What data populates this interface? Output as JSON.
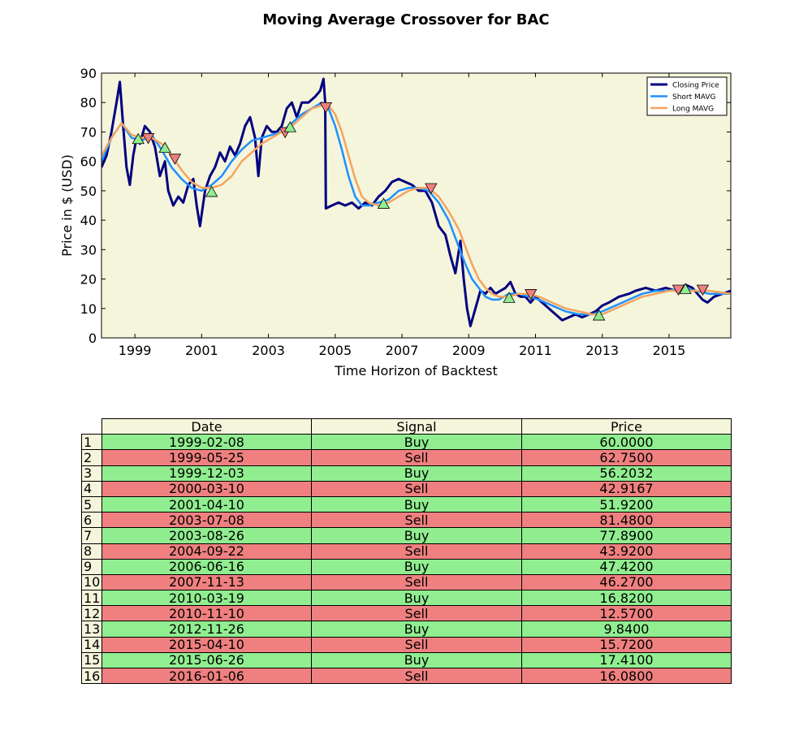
{
  "title": "Moving Average Crossover for BAC",
  "chart_data": {
    "type": "line",
    "xlabel": "Time Horizon of Backtest",
    "ylabel": "Price in $ (USD)",
    "xlim": [
      1998.0,
      2016.85
    ],
    "ylim": [
      0,
      90
    ],
    "xticks": [
      1999,
      2001,
      2003,
      2005,
      2007,
      2009,
      2011,
      2013,
      2015
    ],
    "yticks": [
      0,
      10,
      20,
      30,
      40,
      50,
      60,
      70,
      80,
      90
    ],
    "grid": false,
    "legend_position": "top-right",
    "colors": {
      "background": "#f5f5dc",
      "closing": "#000080",
      "short": "#1e90ff",
      "long": "#f4a460",
      "buy": "#90ee90",
      "sell": "#f08080"
    },
    "series": [
      {
        "name": "Closing Price",
        "points": [
          [
            1998.0,
            58
          ],
          [
            1998.15,
            62
          ],
          [
            1998.3,
            70
          ],
          [
            1998.45,
            80
          ],
          [
            1998.55,
            87
          ],
          [
            1998.65,
            72
          ],
          [
            1998.75,
            58
          ],
          [
            1998.85,
            52
          ],
          [
            1998.95,
            62
          ],
          [
            1999.05,
            68
          ],
          [
            1999.15,
            66
          ],
          [
            1999.3,
            72
          ],
          [
            1999.45,
            70
          ],
          [
            1999.6,
            65
          ],
          [
            1999.75,
            55
          ],
          [
            1999.9,
            60
          ],
          [
            2000.0,
            50
          ],
          [
            2000.15,
            45
          ],
          [
            2000.3,
            48
          ],
          [
            2000.45,
            46
          ],
          [
            2000.6,
            52
          ],
          [
            2000.75,
            54
          ],
          [
            2000.85,
            45
          ],
          [
            2000.95,
            38
          ],
          [
            2001.1,
            50
          ],
          [
            2001.25,
            55
          ],
          [
            2001.4,
            58
          ],
          [
            2001.55,
            63
          ],
          [
            2001.7,
            60
          ],
          [
            2001.85,
            65
          ],
          [
            2002.0,
            62
          ],
          [
            2002.15,
            66
          ],
          [
            2002.3,
            72
          ],
          [
            2002.45,
            75
          ],
          [
            2002.6,
            68
          ],
          [
            2002.7,
            55
          ],
          [
            2002.8,
            68
          ],
          [
            2002.95,
            72
          ],
          [
            2003.1,
            70
          ],
          [
            2003.25,
            70
          ],
          [
            2003.4,
            72
          ],
          [
            2003.55,
            78
          ],
          [
            2003.7,
            80
          ],
          [
            2003.85,
            75
          ],
          [
            2004.0,
            80
          ],
          [
            2004.2,
            80
          ],
          [
            2004.4,
            82
          ],
          [
            2004.55,
            84
          ],
          [
            2004.65,
            88
          ],
          [
            2004.7,
            80
          ],
          [
            2004.72,
            44
          ],
          [
            2004.9,
            45
          ],
          [
            2005.1,
            46
          ],
          [
            2005.3,
            45
          ],
          [
            2005.5,
            46
          ],
          [
            2005.7,
            44
          ],
          [
            2005.9,
            46
          ],
          [
            2006.1,
            45
          ],
          [
            2006.3,
            48
          ],
          [
            2006.5,
            50
          ],
          [
            2006.7,
            53
          ],
          [
            2006.9,
            54
          ],
          [
            2007.1,
            53
          ],
          [
            2007.3,
            52
          ],
          [
            2007.5,
            50
          ],
          [
            2007.7,
            50
          ],
          [
            2007.9,
            46
          ],
          [
            2008.1,
            38
          ],
          [
            2008.3,
            35
          ],
          [
            2008.45,
            28
          ],
          [
            2008.6,
            22
          ],
          [
            2008.75,
            33
          ],
          [
            2008.85,
            20
          ],
          [
            2008.95,
            10
          ],
          [
            2009.05,
            4
          ],
          [
            2009.2,
            10
          ],
          [
            2009.35,
            16
          ],
          [
            2009.5,
            15
          ],
          [
            2009.65,
            17
          ],
          [
            2009.8,
            15
          ],
          [
            2009.95,
            16
          ],
          [
            2010.1,
            17
          ],
          [
            2010.25,
            19
          ],
          [
            2010.4,
            15
          ],
          [
            2010.55,
            14
          ],
          [
            2010.7,
            14
          ],
          [
            2010.85,
            12
          ],
          [
            2011.0,
            14
          ],
          [
            2011.2,
            12
          ],
          [
            2011.4,
            10
          ],
          [
            2011.6,
            8
          ],
          [
            2011.8,
            6
          ],
          [
            2012.0,
            7
          ],
          [
            2012.2,
            8
          ],
          [
            2012.4,
            7
          ],
          [
            2012.6,
            8
          ],
          [
            2012.8,
            9
          ],
          [
            2013.0,
            11
          ],
          [
            2013.2,
            12
          ],
          [
            2013.5,
            14
          ],
          [
            2013.8,
            15
          ],
          [
            2014.0,
            16
          ],
          [
            2014.3,
            17
          ],
          [
            2014.6,
            16
          ],
          [
            2014.9,
            17
          ],
          [
            2015.2,
            16
          ],
          [
            2015.5,
            18
          ],
          [
            2015.7,
            17
          ],
          [
            2015.85,
            15
          ],
          [
            2016.0,
            13
          ],
          [
            2016.15,
            12
          ],
          [
            2016.35,
            14
          ],
          [
            2016.6,
            15
          ],
          [
            2016.85,
            16
          ]
        ]
      },
      {
        "name": "Short MAVG",
        "points": [
          [
            1998.0,
            60
          ],
          [
            1998.3,
            68
          ],
          [
            1998.6,
            73
          ],
          [
            1998.9,
            68
          ],
          [
            1999.2,
            67
          ],
          [
            1999.5,
            69
          ],
          [
            1999.8,
            64
          ],
          [
            2000.1,
            58
          ],
          [
            2000.4,
            54
          ],
          [
            2000.7,
            51
          ],
          [
            2001.0,
            50
          ],
          [
            2001.3,
            52
          ],
          [
            2001.6,
            55
          ],
          [
            2001.9,
            60
          ],
          [
            2002.2,
            64
          ],
          [
            2002.5,
            67
          ],
          [
            2002.8,
            68
          ],
          [
            2003.1,
            69
          ],
          [
            2003.4,
            70
          ],
          [
            2003.7,
            73
          ],
          [
            2004.0,
            76
          ],
          [
            2004.3,
            78
          ],
          [
            2004.6,
            80
          ],
          [
            2004.8,
            78
          ],
          [
            2005.0,
            72
          ],
          [
            2005.2,
            64
          ],
          [
            2005.4,
            55
          ],
          [
            2005.6,
            48
          ],
          [
            2005.8,
            45
          ],
          [
            2006.0,
            45
          ],
          [
            2006.3,
            46
          ],
          [
            2006.6,
            47
          ],
          [
            2006.9,
            50
          ],
          [
            2007.2,
            51
          ],
          [
            2007.5,
            51
          ],
          [
            2007.8,
            50
          ],
          [
            2008.1,
            46
          ],
          [
            2008.4,
            40
          ],
          [
            2008.7,
            31
          ],
          [
            2008.9,
            25
          ],
          [
            2009.1,
            20
          ],
          [
            2009.3,
            17
          ],
          [
            2009.5,
            14
          ],
          [
            2009.7,
            13
          ],
          [
            2009.9,
            13
          ],
          [
            2010.2,
            15
          ],
          [
            2010.5,
            15
          ],
          [
            2010.8,
            14
          ],
          [
            2011.1,
            13
          ],
          [
            2011.5,
            11
          ],
          [
            2011.9,
            9
          ],
          [
            2012.3,
            8
          ],
          [
            2012.7,
            8
          ],
          [
            2013.0,
            9
          ],
          [
            2013.4,
            11
          ],
          [
            2013.8,
            13
          ],
          [
            2014.2,
            15
          ],
          [
            2014.6,
            16
          ],
          [
            2015.0,
            16
          ],
          [
            2015.4,
            17
          ],
          [
            2015.8,
            16
          ],
          [
            2016.2,
            15
          ],
          [
            2016.85,
            15
          ]
        ]
      },
      {
        "name": "Long MAVG",
        "points": [
          [
            1998.0,
            62
          ],
          [
            1998.3,
            68
          ],
          [
            1998.6,
            73
          ],
          [
            1998.9,
            69
          ],
          [
            1999.2,
            68
          ],
          [
            1999.5,
            68
          ],
          [
            1999.8,
            66
          ],
          [
            2000.1,
            62
          ],
          [
            2000.4,
            57
          ],
          [
            2000.7,
            53
          ],
          [
            2001.0,
            51
          ],
          [
            2001.3,
            51
          ],
          [
            2001.6,
            52
          ],
          [
            2001.9,
            55
          ],
          [
            2002.2,
            60
          ],
          [
            2002.5,
            63
          ],
          [
            2002.8,
            66
          ],
          [
            2003.1,
            68
          ],
          [
            2003.4,
            70
          ],
          [
            2003.7,
            72
          ],
          [
            2004.0,
            75
          ],
          [
            2004.3,
            78
          ],
          [
            2004.6,
            79
          ],
          [
            2004.8,
            79
          ],
          [
            2005.0,
            76
          ],
          [
            2005.2,
            70
          ],
          [
            2005.4,
            62
          ],
          [
            2005.6,
            54
          ],
          [
            2005.8,
            48
          ],
          [
            2006.0,
            46
          ],
          [
            2006.3,
            45
          ],
          [
            2006.6,
            46
          ],
          [
            2006.9,
            48
          ],
          [
            2007.2,
            50
          ],
          [
            2007.5,
            51
          ],
          [
            2007.8,
            51
          ],
          [
            2008.1,
            48
          ],
          [
            2008.4,
            43
          ],
          [
            2008.7,
            37
          ],
          [
            2008.9,
            31
          ],
          [
            2009.1,
            25
          ],
          [
            2009.3,
            20
          ],
          [
            2009.5,
            17
          ],
          [
            2009.7,
            15
          ],
          [
            2009.9,
            14
          ],
          [
            2010.2,
            14
          ],
          [
            2010.5,
            15
          ],
          [
            2010.8,
            15
          ],
          [
            2011.1,
            14
          ],
          [
            2011.5,
            12
          ],
          [
            2011.9,
            10
          ],
          [
            2012.3,
            9
          ],
          [
            2012.7,
            8
          ],
          [
            2013.0,
            8
          ],
          [
            2013.4,
            10
          ],
          [
            2013.8,
            12
          ],
          [
            2014.2,
            14
          ],
          [
            2014.6,
            15
          ],
          [
            2015.0,
            16
          ],
          [
            2015.4,
            16
          ],
          [
            2015.8,
            16
          ],
          [
            2016.2,
            16
          ],
          [
            2016.85,
            15
          ]
        ]
      }
    ],
    "signals": [
      {
        "x": 1999.1,
        "y": 67.5,
        "type": "buy"
      },
      {
        "x": 1999.4,
        "y": 68,
        "type": "sell"
      },
      {
        "x": 1999.9,
        "y": 64.5,
        "type": "buy"
      },
      {
        "x": 2000.2,
        "y": 61,
        "type": "sell"
      },
      {
        "x": 2001.3,
        "y": 49.5,
        "type": "buy"
      },
      {
        "x": 2003.5,
        "y": 70,
        "type": "sell"
      },
      {
        "x": 2003.65,
        "y": 71.5,
        "type": "buy"
      },
      {
        "x": 2004.72,
        "y": 78.5,
        "type": "sell"
      },
      {
        "x": 2006.45,
        "y": 45.5,
        "type": "buy"
      },
      {
        "x": 2007.87,
        "y": 51,
        "type": "sell"
      },
      {
        "x": 2010.21,
        "y": 13.5,
        "type": "buy"
      },
      {
        "x": 2010.86,
        "y": 15,
        "type": "sell"
      },
      {
        "x": 2012.9,
        "y": 7.5,
        "type": "buy"
      },
      {
        "x": 2015.28,
        "y": 16.5,
        "type": "sell"
      },
      {
        "x": 2015.49,
        "y": 16.5,
        "type": "buy"
      },
      {
        "x": 2016.01,
        "y": 16.5,
        "type": "sell"
      }
    ]
  },
  "table": {
    "headers": [
      "Date",
      "Signal",
      "Price"
    ],
    "rows": [
      {
        "n": "1",
        "date": "1999-02-08",
        "signal": "Buy",
        "price": "60.0000"
      },
      {
        "n": "2",
        "date": "1999-05-25",
        "signal": "Sell",
        "price": "62.7500"
      },
      {
        "n": "3",
        "date": "1999-12-03",
        "signal": "Buy",
        "price": "56.2032"
      },
      {
        "n": "4",
        "date": "2000-03-10",
        "signal": "Sell",
        "price": "42.9167"
      },
      {
        "n": "5",
        "date": "2001-04-10",
        "signal": "Buy",
        "price": "51.9200"
      },
      {
        "n": "6",
        "date": "2003-07-08",
        "signal": "Sell",
        "price": "81.4800"
      },
      {
        "n": "7",
        "date": "2003-08-26",
        "signal": "Buy",
        "price": "77.8900"
      },
      {
        "n": "8",
        "date": "2004-09-22",
        "signal": "Sell",
        "price": "43.9200"
      },
      {
        "n": "9",
        "date": "2006-06-16",
        "signal": "Buy",
        "price": "47.4200"
      },
      {
        "n": "10",
        "date": "2007-11-13",
        "signal": "Sell",
        "price": "46.2700"
      },
      {
        "n": "11",
        "date": "2010-03-19",
        "signal": "Buy",
        "price": "16.8200"
      },
      {
        "n": "12",
        "date": "2010-11-10",
        "signal": "Sell",
        "price": "12.5700"
      },
      {
        "n": "13",
        "date": "2012-11-26",
        "signal": "Buy",
        "price": "9.8400"
      },
      {
        "n": "14",
        "date": "2015-04-10",
        "signal": "Sell",
        "price": "15.7200"
      },
      {
        "n": "15",
        "date": "2015-06-26",
        "signal": "Buy",
        "price": "17.4100"
      },
      {
        "n": "16",
        "date": "2016-01-06",
        "signal": "Sell",
        "price": "16.0800"
      }
    ]
  }
}
